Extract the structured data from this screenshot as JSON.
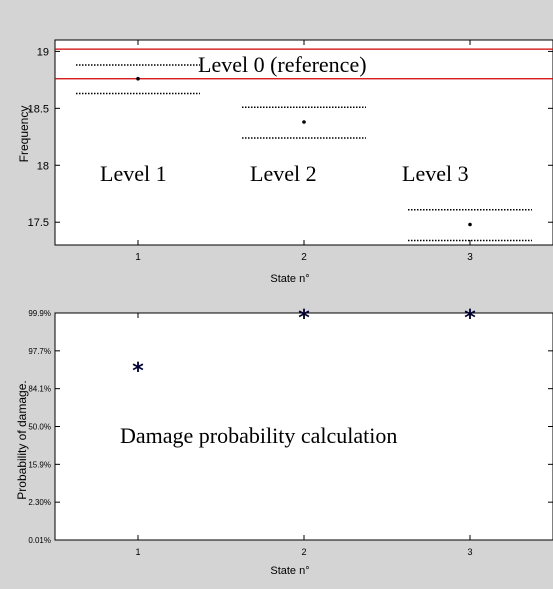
{
  "colors": {
    "figure_background": "#d4d4d4",
    "axes_background": "#ffffff",
    "reference_line": "#d00000",
    "marker": "#000033"
  },
  "chart_data": [
    {
      "type": "scatter",
      "xlabel": "State n°",
      "ylabel": "Frequency",
      "xlim": [
        0.5,
        3.5
      ],
      "ylim": [
        17.3,
        19.1
      ],
      "xticks": [
        1,
        2,
        3
      ],
      "yticks": [
        17.5,
        18,
        18.5,
        19
      ],
      "xtick_labels": [
        "1",
        "2",
        "3"
      ],
      "ytick_labels": [
        "17.5",
        "18",
        "18.5",
        "19"
      ],
      "grid": false,
      "reference_band": {
        "upper": 19.02,
        "lower": 18.76
      },
      "points": [
        {
          "x": 1,
          "y": 18.76,
          "upper": 18.88,
          "lower": 18.63
        },
        {
          "x": 2,
          "y": 18.38,
          "upper": 18.51,
          "lower": 18.24
        },
        {
          "x": 3,
          "y": 17.48,
          "upper": 17.61,
          "lower": 17.34
        }
      ],
      "annotations": [
        "Level 0 (reference)",
        "Level 1",
        "Level 2",
        "Level 3"
      ]
    },
    {
      "type": "scatter",
      "xlabel": "State n°",
      "ylabel": "Probability of damage.",
      "xlim": [
        0.5,
        3.5
      ],
      "xticks": [
        1,
        2,
        3
      ],
      "xtick_labels": [
        "1",
        "2",
        "3"
      ],
      "ytick_labels": [
        "0.01%",
        "2.30%",
        "15.9%",
        "50.0%",
        "84.1%",
        "97.7%",
        "99.9%"
      ],
      "ylim_index": [
        0,
        6
      ],
      "grid": false,
      "points": [
        {
          "x": 1,
          "y_index": 4.6
        },
        {
          "x": 2,
          "y_index": 6
        },
        {
          "x": 3,
          "y_index": 6
        }
      ],
      "annotations": [
        "Damage probability calculation"
      ]
    }
  ]
}
